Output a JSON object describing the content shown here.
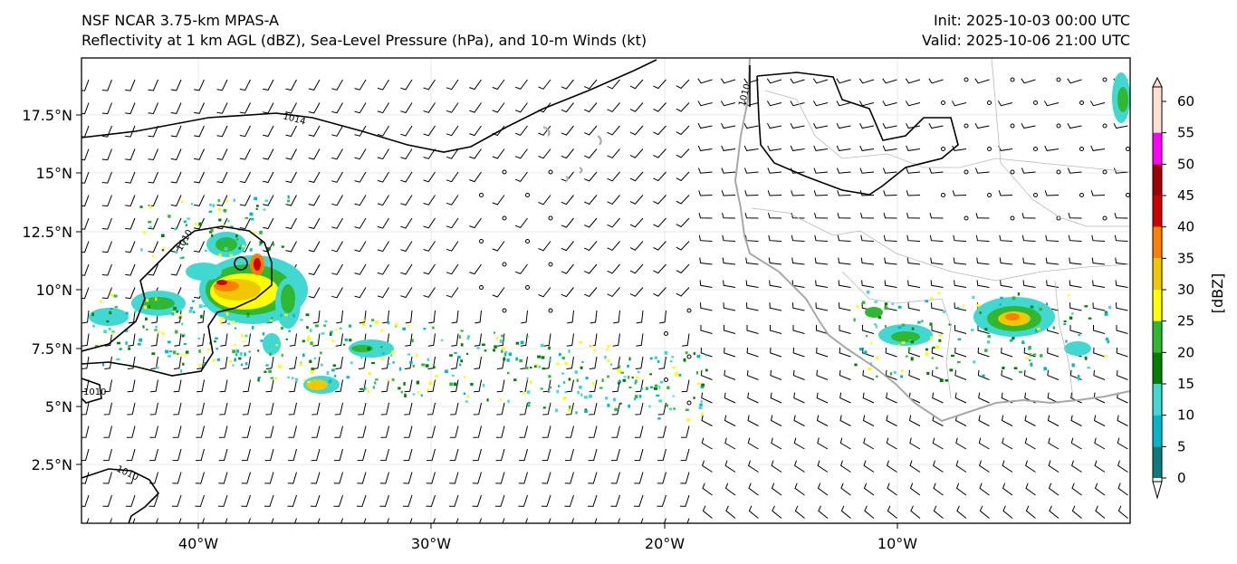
{
  "header": {
    "model": "NSF NCAR 3.75-km MPAS-A",
    "fields": "Reflectivity at 1 km AGL (dBZ), Sea-Level Pressure (hPa), and 10-m Winds (kt)",
    "init": "Init: 2025-10-03 00:00 UTC",
    "valid": "Valid: 2025-10-06 21:00 UTC"
  },
  "map": {
    "lon_labels": [
      "40°W",
      "30°W",
      "20°W",
      "10°W"
    ],
    "lat_labels": [
      "17.5°N",
      "15°N",
      "12.5°N",
      "10°N",
      "7.5°N",
      "5°N",
      "2.5°N"
    ],
    "isobar_labels": [
      "1014",
      "1010",
      "1010",
      "1010",
      "1010"
    ]
  },
  "colorbar": {
    "label": "[dBZ]",
    "ticks": [
      "0",
      "5",
      "10",
      "15",
      "20",
      "25",
      "30",
      "35",
      "40",
      "45",
      "50",
      "55",
      "60"
    ],
    "colors": [
      "#ffffff",
      "#0e7b7f",
      "#00b8c8",
      "#40d8d0",
      "#008000",
      "#30b830",
      "#ffff00",
      "#f0c800",
      "#ff8000",
      "#d00000",
      "#a00000",
      "#ff00ff",
      "#ffe0d0"
    ]
  }
}
